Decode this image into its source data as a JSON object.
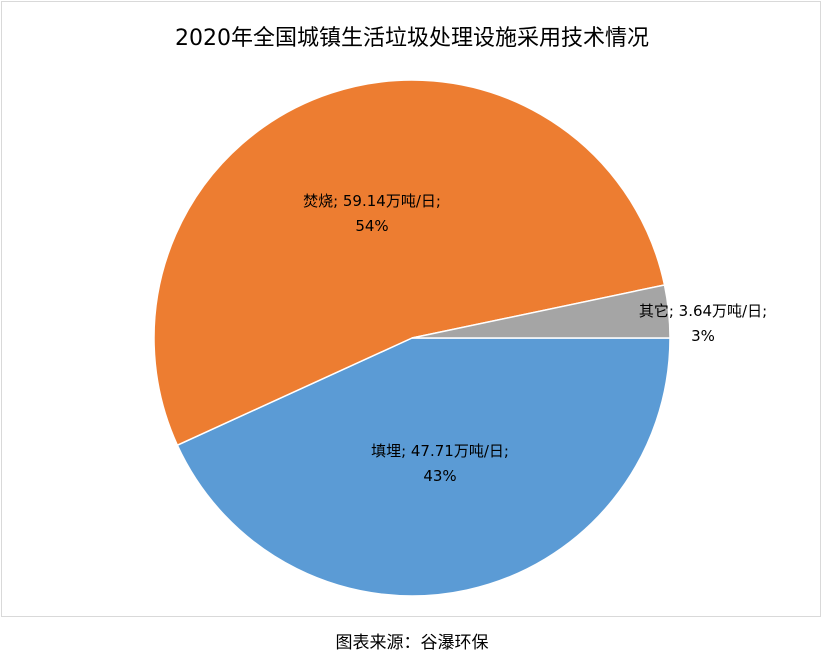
{
  "chart_data": {
    "type": "pie",
    "title": "2020年全国城镇生活垃圾处理设施采用技术情况",
    "slices": [
      {
        "name": "填埋",
        "value": 47.71,
        "unit": "万吨/日",
        "percent_label": "43%",
        "color": "#5b9bd5",
        "label_line1": "填埋; 47.71万吨/日;",
        "label_line2": "43%"
      },
      {
        "name": "焚烧",
        "value": 59.14,
        "unit": "万吨/日",
        "percent_label": "54%",
        "color": "#ed7d31",
        "label_line1": "焚烧; 59.14万吨/日;",
        "label_line2": "54%"
      },
      {
        "name": "其它",
        "value": 3.64,
        "unit": "万吨/日",
        "percent_label": "3%",
        "color": "#a5a5a5",
        "label_line1": "其它; 3.64万吨/日;",
        "label_line2": "3%"
      }
    ],
    "start_angle": "3 o'clock, clockwise"
  },
  "source_note": "图表来源：谷瀑环保"
}
